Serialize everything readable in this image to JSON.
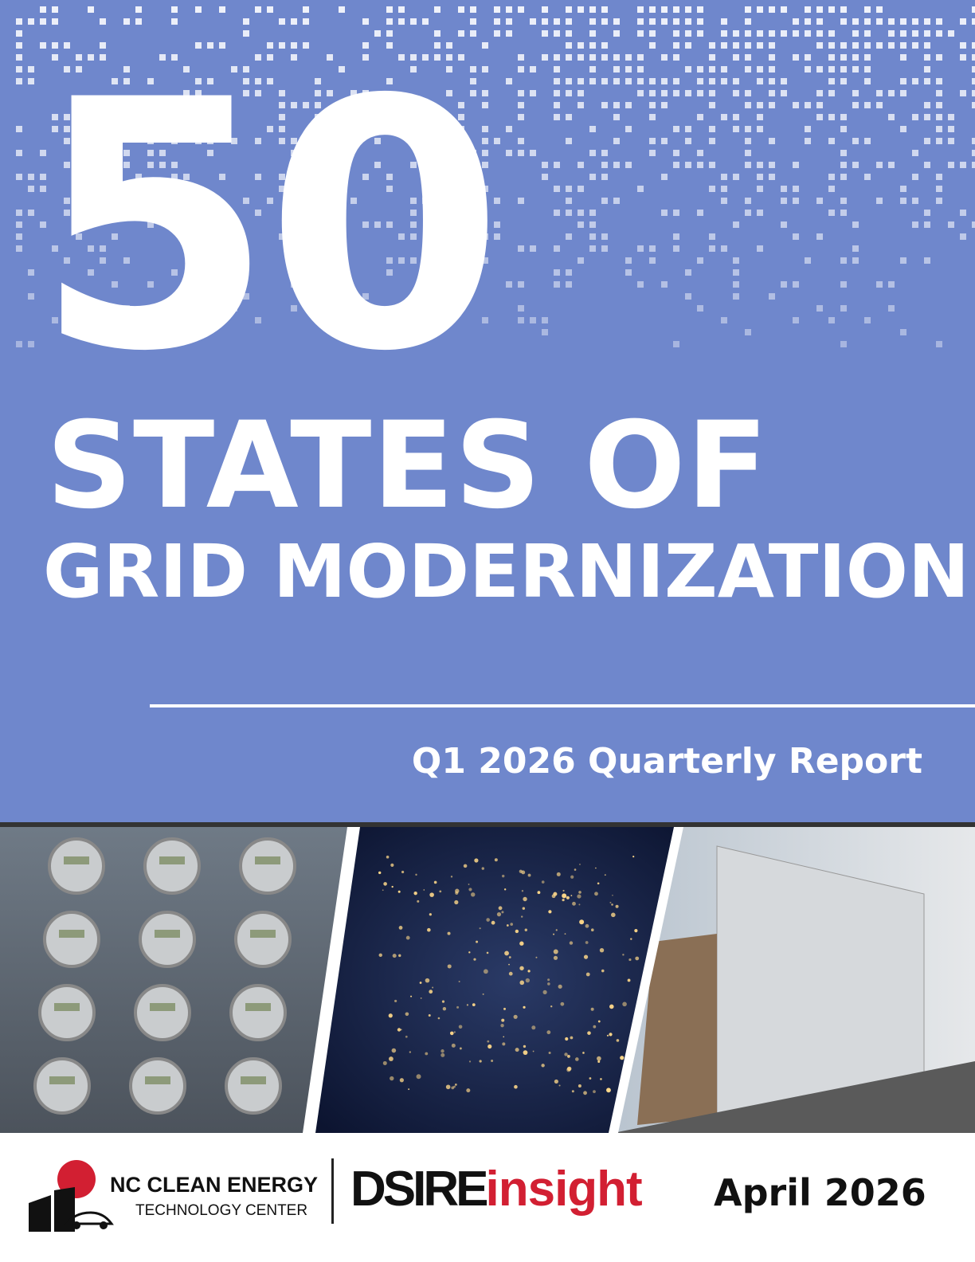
{
  "cover": {
    "title_number": "50",
    "title_line1": "STATES OF",
    "title_line2": "GRID MODERNIZATION",
    "subtitle": "Q1 2026 Quarterly Report"
  },
  "footer": {
    "org_name": "NC CLEAN ENERGY",
    "org_subname": "TECHNOLOGY CENTER",
    "brand_main": "DSIRE",
    "brand_accent": "insight",
    "date": "April 2026"
  }
}
